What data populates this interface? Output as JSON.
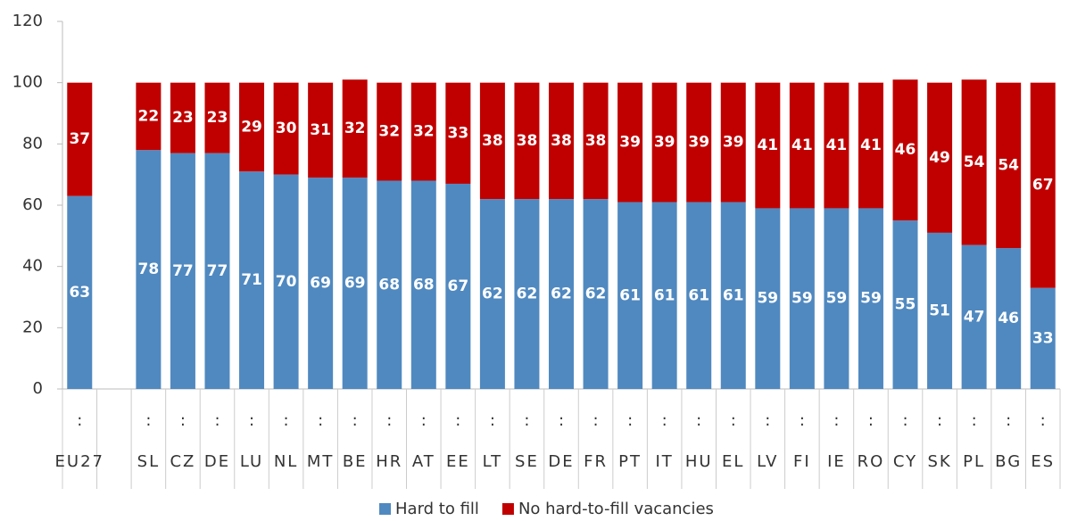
{
  "chart_data": {
    "type": "stacked_bar",
    "categories": [
      "EU27",
      null,
      "SL",
      "CZ",
      "DE",
      "LU",
      "NL",
      "MT",
      "BE",
      "HR",
      "AT",
      "EE",
      "LT",
      "SE",
      "DE",
      "FR",
      "PT",
      "IT",
      "HU",
      "EL",
      "LV",
      "FI",
      "IE",
      "RO",
      "CY",
      "SK",
      "PL",
      "BG",
      "ES"
    ],
    "category_notes": [
      ":",
      null,
      ":",
      ":",
      ":",
      ":",
      ":",
      ":",
      ":",
      ":",
      ":",
      ":",
      ":",
      ":",
      ":",
      ":",
      ":",
      ":",
      ":",
      ":",
      ":",
      ":",
      ":",
      ":",
      ":",
      ":",
      ":",
      ":",
      ":"
    ],
    "series": [
      {
        "name": "Hard to fill",
        "color": "#5089c0",
        "values": [
          63,
          null,
          78,
          77,
          77,
          71,
          70,
          69,
          69,
          68,
          68,
          67,
          62,
          62,
          62,
          62,
          61,
          61,
          61,
          61,
          59,
          59,
          59,
          59,
          55,
          51,
          47,
          46,
          33
        ]
      },
      {
        "name": "No hard-to-fill vacancies",
        "color": "#c00000",
        "values": [
          37,
          null,
          22,
          23,
          23,
          29,
          30,
          31,
          32,
          32,
          32,
          33,
          38,
          38,
          38,
          38,
          39,
          39,
          39,
          39,
          41,
          41,
          41,
          41,
          46,
          49,
          54,
          54,
          67
        ]
      }
    ],
    "ylim": [
      0,
      120
    ],
    "yticks": [
      0,
      20,
      40,
      60,
      80,
      100,
      120
    ],
    "legend": "bottom"
  }
}
